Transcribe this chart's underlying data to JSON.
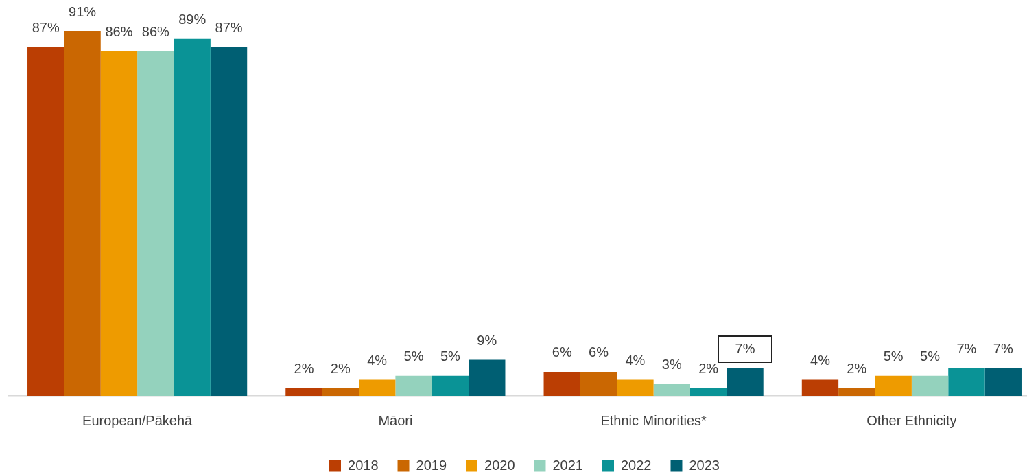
{
  "chart_data": {
    "type": "bar",
    "categories": [
      "European/Pākehā",
      "Māori",
      "Ethnic Minorities*",
      "Other Ethnicity"
    ],
    "series": [
      {
        "name": "2018",
        "color": "#bb3e03",
        "values": [
          87,
          2,
          6,
          4
        ],
        "value_labels": [
          "87%",
          "2%",
          "6%",
          "4%"
        ]
      },
      {
        "name": "2019",
        "color": "#ca6702",
        "values": [
          91,
          2,
          6,
          2
        ],
        "value_labels": [
          "91%",
          "2%",
          "6%",
          "2%"
        ]
      },
      {
        "name": "2020",
        "color": "#ee9b00",
        "values": [
          86,
          4,
          4,
          5
        ],
        "value_labels": [
          "86%",
          "4%",
          "4%",
          "5%"
        ]
      },
      {
        "name": "2021",
        "color": "#94d2bd",
        "values": [
          86,
          5,
          3,
          5
        ],
        "value_labels": [
          "86%",
          "5%",
          "3%",
          "5%"
        ]
      },
      {
        "name": "2022",
        "color": "#0a9396",
        "values": [
          89,
          5,
          2,
          7
        ],
        "value_labels": [
          "89%",
          "5%",
          "2%",
          "7%"
        ]
      },
      {
        "name": "2023",
        "color": "#005f73",
        "values": [
          87,
          9,
          7,
          7
        ],
        "value_labels": [
          "87%",
          "9%",
          "7%",
          "7%"
        ]
      }
    ],
    "legend": "bottom",
    "grid": false
  }
}
